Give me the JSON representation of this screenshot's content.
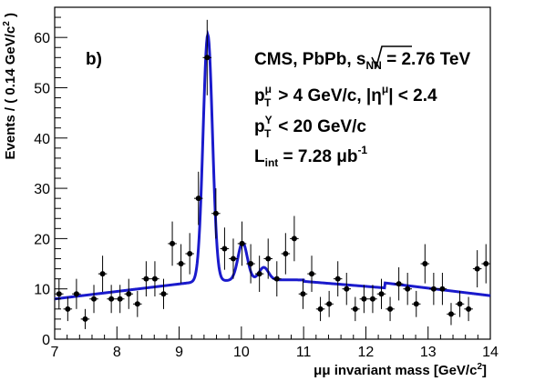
{
  "chart_data": {
    "type": "scatter",
    "xlabel_main": "μμ invariant mass [GeV/c",
    "xlabel_sup": "2",
    "xlabel_close": "]",
    "ylabel_main": "Events / ( 0.14 GeV/c",
    "ylabel_sup": "2",
    "ylabel_close": " )",
    "xlim": [
      7,
      14
    ],
    "ylim": [
      0,
      66
    ],
    "x_ticks": [
      7,
      8,
      9,
      10,
      11,
      12,
      13,
      14
    ],
    "y_ticks": [
      0,
      10,
      20,
      30,
      40,
      50,
      60
    ],
    "grid": false,
    "panel_label": "b)",
    "annotations": {
      "line1_prefix": "CMS, PbPb, ",
      "line1_sqrt": "s",
      "line1_sub": "NN",
      "line1_suffix": " = 2.76 TeV",
      "line2_p": "p",
      "line2_sup": "μ",
      "line2_sub": "T",
      "line2_mid": " > 4 GeV/c, |η",
      "line2_eta_sup": "μ",
      "line2_end": "| < 2.4",
      "line3_p": "p",
      "line3_sup": "Υ",
      "line3_sub": "T",
      "line3_end": " < 20 GeV/c",
      "line4_L": "L",
      "line4_sub": "int",
      "line4_mid": " = 7.28 μb",
      "line4_sup": "-1"
    },
    "colors": {
      "fit": "#1a1acc",
      "points": "#000000"
    },
    "series": [
      {
        "kind": "data_points",
        "x": [
          7.07,
          7.21,
          7.35,
          7.49,
          7.63,
          7.77,
          7.91,
          8.05,
          8.19,
          8.33,
          8.47,
          8.61,
          8.75,
          8.89,
          9.03,
          9.17,
          9.31,
          9.45,
          9.59,
          9.73,
          9.87,
          10.01,
          10.15,
          10.29,
          10.43,
          10.57,
          10.71,
          10.85,
          10.99,
          11.13,
          11.27,
          11.41,
          11.55,
          11.69,
          11.83,
          11.97,
          12.11,
          12.25,
          12.39,
          12.53,
          12.67,
          12.81,
          12.95,
          13.09,
          13.23,
          13.37,
          13.51,
          13.65,
          13.79,
          13.93
        ],
        "y": [
          9,
          6,
          9,
          4,
          8,
          13,
          8,
          8,
          9,
          7,
          12,
          12,
          9,
          19,
          15,
          17,
          28,
          56,
          25,
          18,
          16,
          19,
          15,
          13,
          16,
          12,
          17,
          20,
          9,
          13,
          6,
          7,
          12,
          10,
          6,
          8,
          8,
          9,
          6,
          11,
          10,
          7,
          15,
          10,
          10,
          5,
          7,
          6,
          14,
          15
        ],
        "yerr": [
          3.0,
          2.4,
          3.0,
          2.0,
          2.8,
          3.6,
          2.8,
          2.8,
          3.0,
          2.6,
          3.5,
          3.5,
          3.0,
          4.4,
          3.9,
          4.1,
          5.3,
          7.5,
          5.0,
          4.2,
          4.0,
          4.4,
          3.9,
          3.6,
          4.0,
          3.5,
          4.1,
          4.5,
          3.0,
          3.6,
          2.4,
          2.6,
          3.5,
          3.2,
          2.4,
          2.8,
          2.8,
          3.0,
          2.4,
          3.3,
          3.2,
          2.6,
          3.9,
          3.2,
          3.2,
          2.2,
          2.6,
          2.4,
          3.7,
          3.9
        ]
      }
    ]
  }
}
